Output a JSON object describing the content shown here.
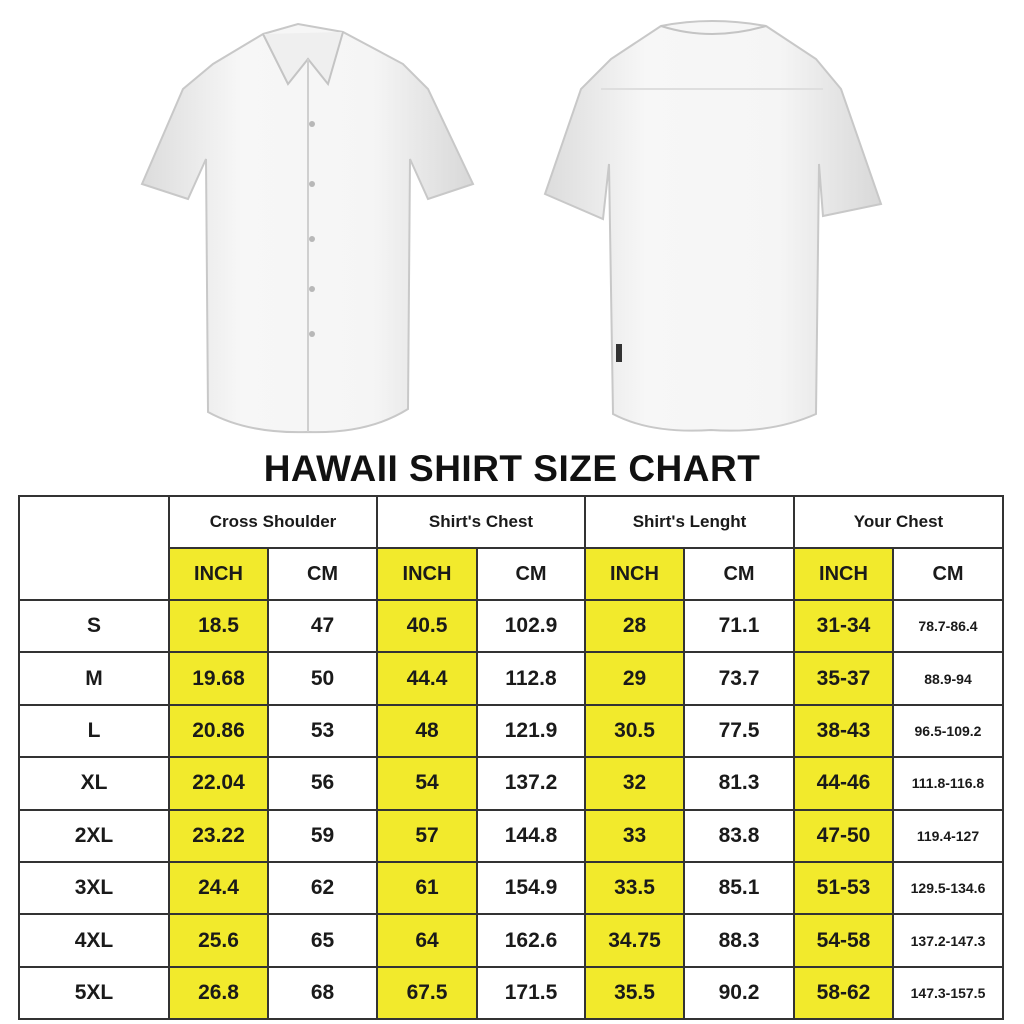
{
  "title": "HAWAII SHIRT SIZE CHART",
  "colors": {
    "inch_highlight": "#f2ea2c",
    "border": "#333333",
    "shirt": "#f4f4f4"
  },
  "images": {
    "front": "white short-sleeve shirt front",
    "back": "white short-sleeve shirt back"
  },
  "groups": [
    "Cross Shoulder",
    "Shirt's Chest",
    "Shirt's Lenght",
    "Your Chest"
  ],
  "units": [
    "INCH",
    "CM",
    "INCH",
    "CM",
    "INCH",
    "CM",
    "INCH",
    "CM"
  ],
  "rows": [
    {
      "size": "S",
      "values": [
        "18.5",
        "47",
        "40.5",
        "102.9",
        "28",
        "71.1",
        "31-34",
        "78.7-86.4"
      ]
    },
    {
      "size": "M",
      "values": [
        "19.68",
        "50",
        "44.4",
        "112.8",
        "29",
        "73.7",
        "35-37",
        "88.9-94"
      ]
    },
    {
      "size": "L",
      "values": [
        "20.86",
        "53",
        "48",
        "121.9",
        "30.5",
        "77.5",
        "38-43",
        "96.5-109.2"
      ]
    },
    {
      "size": "XL",
      "values": [
        "22.04",
        "56",
        "54",
        "137.2",
        "32",
        "81.3",
        "44-46",
        "111.8-116.8"
      ]
    },
    {
      "size": "2XL",
      "values": [
        "23.22",
        "59",
        "57",
        "144.8",
        "33",
        "83.8",
        "47-50",
        "119.4-127"
      ]
    },
    {
      "size": "3XL",
      "values": [
        "24.4",
        "62",
        "61",
        "154.9",
        "33.5",
        "85.1",
        "51-53",
        "129.5-134.6"
      ]
    },
    {
      "size": "4XL",
      "values": [
        "25.6",
        "65",
        "64",
        "162.6",
        "34.75",
        "88.3",
        "54-58",
        "137.2-147.3"
      ]
    },
    {
      "size": "5XL",
      "values": [
        "26.8",
        "68",
        "67.5",
        "171.5",
        "35.5",
        "90.2",
        "58-62",
        "147.3-157.5"
      ]
    }
  ]
}
